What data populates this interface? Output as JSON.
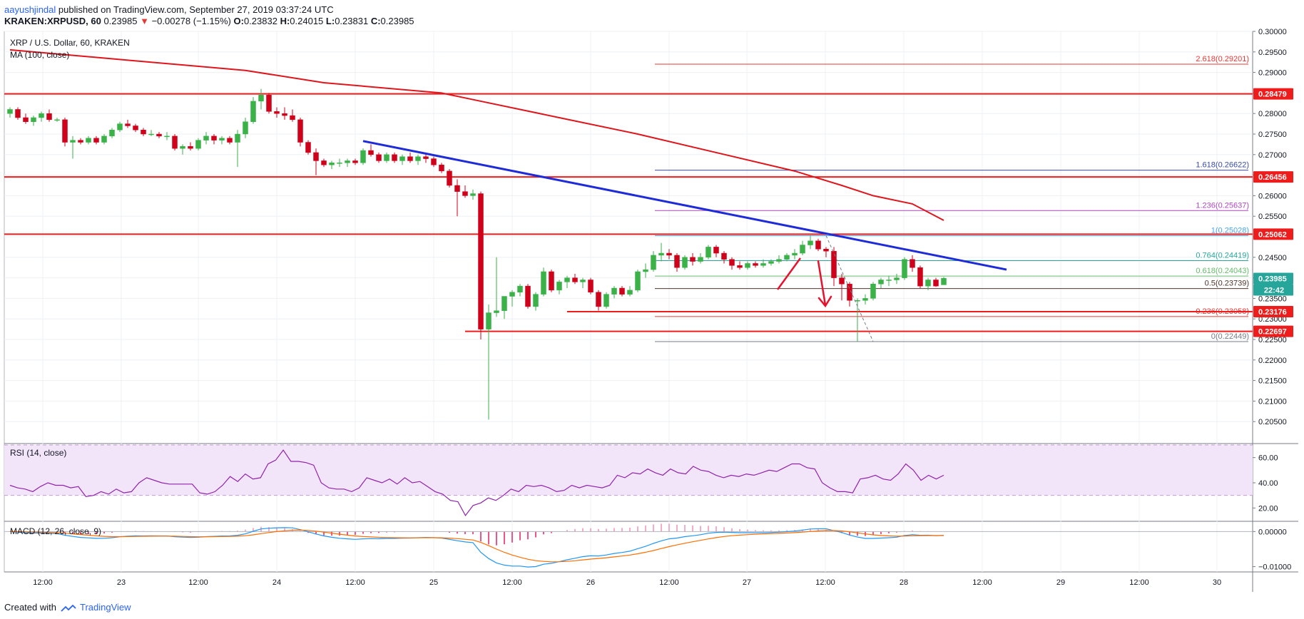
{
  "header": {
    "user": "aayushjindal",
    "published_text": "published on TradingView.com, September 27, 2019 03:37:24 UTC",
    "symbol": "KRAKEN:XRPUSD, 60",
    "last": "0.23985",
    "change_arrow": "▼",
    "change": "−0.00278 (−1.15%)",
    "o_label": "O:",
    "o": "0.23832",
    "h_label": "H:",
    "h": "0.24015",
    "l_label": "L:",
    "l": "0.23831",
    "c_label": "C:",
    "c": "0.23985"
  },
  "footer": {
    "created_with": "Created with",
    "brand": "TradingView"
  },
  "colors": {
    "bull": "#3ab248",
    "bear": "#d0021b",
    "ma": "#e0151b",
    "trend": "#1e2bd8",
    "resistance": "#ef1c1c",
    "rsi": "#8e24aa",
    "macd": "#2196f3",
    "signal": "#ff6d00",
    "hist": "#e91e63"
  },
  "chart_data": [
    {
      "type": "candlestick",
      "title": "XRP / U.S. Dollar, 60, KRAKEN",
      "indicator": "MA (100, close)",
      "ylim": [
        0.2,
        0.3
      ],
      "y_ticks": [
        "0.30000",
        "0.29500",
        "0.29000",
        "0.28500",
        "0.28000",
        "0.27500",
        "0.27000",
        "0.26500",
        "0.26000",
        "0.25500",
        "0.25000",
        "0.24500",
        "0.24000",
        "0.23500",
        "0.23000",
        "0.22500",
        "0.22000",
        "0.21500",
        "0.21000",
        "0.20500"
      ],
      "x_ticks": [
        "12:00",
        "23",
        "12:00",
        "24",
        "12:00",
        "25",
        "12:00",
        "26",
        "12:00",
        "27",
        "12:00",
        "28",
        "12:00",
        "29",
        "12:00",
        "30"
      ],
      "price_labels": [
        {
          "value": 0.28479,
          "label": "0.28479",
          "kind": "resistance"
        },
        {
          "value": 0.26456,
          "label": "0.26456",
          "kind": "resistance"
        },
        {
          "value": 0.25062,
          "label": "0.25062",
          "kind": "resistance"
        },
        {
          "value": 0.23985,
          "label": "0.23985",
          "kind": "last"
        },
        {
          "value": 0.23176,
          "label": "0.23176",
          "kind": "resistance"
        },
        {
          "value": 0.22697,
          "label": "0.22697",
          "kind": "resistance"
        }
      ],
      "countdown": "22:42",
      "fib_levels": [
        {
          "ratio": "2.618",
          "value": "0.29201",
          "label": "2.618(0.29201)"
        },
        {
          "ratio": "1.618",
          "value": "0.26622",
          "label": "1.618(0.26622)"
        },
        {
          "ratio": "1.236",
          "value": "0.25637",
          "label": "1.236(0.25637)"
        },
        {
          "ratio": "1",
          "value": "0.25028",
          "label": "1(0.25028)"
        },
        {
          "ratio": "0.764",
          "value": "0.24419",
          "label": "0.764(0.24419)"
        },
        {
          "ratio": "0.618",
          "value": "0.24043",
          "label": "0.618(0.24043)"
        },
        {
          "ratio": "0.5",
          "value": "0.23739",
          "label": "0.5(0.23739)"
        },
        {
          "ratio": "0.236",
          "value": "0.23058",
          "label": "0.236(0.23058)"
        },
        {
          "ratio": "0",
          "value": "0.22449",
          "label": "0(0.22449)"
        }
      ],
      "candles": [
        [
          0.28,
          0.2815,
          0.279,
          0.281
        ],
        [
          0.281,
          0.2815,
          0.2785,
          0.279
        ],
        [
          0.279,
          0.28,
          0.2775,
          0.278
        ],
        [
          0.278,
          0.2795,
          0.277,
          0.279
        ],
        [
          0.279,
          0.2805,
          0.278,
          0.28
        ],
        [
          0.28,
          0.281,
          0.278,
          0.2785
        ],
        [
          0.2785,
          0.279,
          0.278,
          0.2785
        ],
        [
          0.2785,
          0.279,
          0.272,
          0.273
        ],
        [
          0.273,
          0.2745,
          0.269,
          0.2735
        ],
        [
          0.2735,
          0.274,
          0.2725,
          0.273
        ],
        [
          0.273,
          0.2745,
          0.2725,
          0.274
        ],
        [
          0.274,
          0.2745,
          0.2725,
          0.273
        ],
        [
          0.273,
          0.275,
          0.2725,
          0.2745
        ],
        [
          0.2745,
          0.2765,
          0.274,
          0.276
        ],
        [
          0.276,
          0.278,
          0.2755,
          0.2775
        ],
        [
          0.2775,
          0.2785,
          0.2765,
          0.277
        ],
        [
          0.277,
          0.2775,
          0.2755,
          0.276
        ],
        [
          0.276,
          0.2765,
          0.2745,
          0.275
        ],
        [
          0.275,
          0.276,
          0.2745,
          0.275
        ],
        [
          0.275,
          0.2755,
          0.274,
          0.2745
        ],
        [
          0.2745,
          0.2755,
          0.2735,
          0.2745
        ],
        [
          0.2745,
          0.275,
          0.271,
          0.2715
        ],
        [
          0.2715,
          0.2725,
          0.27,
          0.272
        ],
        [
          0.272,
          0.273,
          0.271,
          0.2715
        ],
        [
          0.2715,
          0.274,
          0.271,
          0.2735
        ],
        [
          0.2735,
          0.2755,
          0.2725,
          0.2745
        ],
        [
          0.2745,
          0.275,
          0.2725,
          0.2735
        ],
        [
          0.2735,
          0.2745,
          0.2725,
          0.274
        ],
        [
          0.274,
          0.2745,
          0.2725,
          0.273
        ],
        [
          0.273,
          0.276,
          0.267,
          0.275
        ],
        [
          0.275,
          0.279,
          0.274,
          0.278
        ],
        [
          0.278,
          0.284,
          0.2775,
          0.283
        ],
        [
          0.283,
          0.286,
          0.281,
          0.2845
        ],
        [
          0.2845,
          0.285,
          0.28,
          0.2805
        ],
        [
          0.2805,
          0.2815,
          0.279,
          0.28
        ],
        [
          0.28,
          0.2815,
          0.2785,
          0.2795
        ],
        [
          0.2795,
          0.281,
          0.278,
          0.2785
        ],
        [
          0.2785,
          0.279,
          0.272,
          0.273
        ],
        [
          0.273,
          0.2735,
          0.27,
          0.2705
        ],
        [
          0.2705,
          0.2715,
          0.265,
          0.2685
        ],
        [
          0.2685,
          0.269,
          0.267,
          0.2675
        ],
        [
          0.2675,
          0.2685,
          0.2665,
          0.268
        ],
        [
          0.268,
          0.269,
          0.267,
          0.268
        ],
        [
          0.268,
          0.269,
          0.267,
          0.2685
        ],
        [
          0.2685,
          0.269,
          0.2675,
          0.268
        ],
        [
          0.268,
          0.2715,
          0.2675,
          0.271
        ],
        [
          0.271,
          0.2725,
          0.2695,
          0.27
        ],
        [
          0.27,
          0.2705,
          0.268,
          0.2685
        ],
        [
          0.2685,
          0.2705,
          0.268,
          0.27
        ],
        [
          0.27,
          0.2705,
          0.268,
          0.2685
        ],
        [
          0.2685,
          0.27,
          0.2675,
          0.2695
        ],
        [
          0.2695,
          0.2705,
          0.268,
          0.2685
        ],
        [
          0.2685,
          0.27,
          0.2675,
          0.2695
        ],
        [
          0.2695,
          0.2705,
          0.268,
          0.269
        ],
        [
          0.269,
          0.2695,
          0.267,
          0.2675
        ],
        [
          0.2675,
          0.268,
          0.2655,
          0.266
        ],
        [
          0.266,
          0.2665,
          0.262,
          0.2625
        ],
        [
          0.2625,
          0.264,
          0.255,
          0.261
        ],
        [
          0.261,
          0.2625,
          0.2595,
          0.26
        ],
        [
          0.26,
          0.2615,
          0.259,
          0.2605
        ],
        [
          0.2605,
          0.261,
          0.225,
          0.2275
        ],
        [
          0.2275,
          0.2335,
          0.2055,
          0.2315
        ],
        [
          0.2315,
          0.245,
          0.2305,
          0.232
        ],
        [
          0.232,
          0.235,
          0.23,
          0.2355
        ],
        [
          0.2355,
          0.237,
          0.233,
          0.2365
        ],
        [
          0.2365,
          0.2385,
          0.2355,
          0.238
        ],
        [
          0.238,
          0.2385,
          0.2325,
          0.233
        ],
        [
          0.233,
          0.2365,
          0.232,
          0.236
        ],
        [
          0.236,
          0.2425,
          0.2355,
          0.2415
        ],
        [
          0.2415,
          0.242,
          0.2365,
          0.237
        ],
        [
          0.237,
          0.2395,
          0.236,
          0.239
        ],
        [
          0.239,
          0.2405,
          0.2375,
          0.24
        ],
        [
          0.24,
          0.241,
          0.2385,
          0.239
        ],
        [
          0.239,
          0.24,
          0.2375,
          0.2395
        ],
        [
          0.2395,
          0.24,
          0.236,
          0.2365
        ],
        [
          0.2365,
          0.237,
          0.232,
          0.233
        ],
        [
          0.233,
          0.2365,
          0.2325,
          0.236
        ],
        [
          0.236,
          0.238,
          0.235,
          0.2375
        ],
        [
          0.2375,
          0.238,
          0.2355,
          0.236
        ],
        [
          0.236,
          0.238,
          0.2355,
          0.237
        ],
        [
          0.237,
          0.242,
          0.2365,
          0.2415
        ],
        [
          0.2415,
          0.2435,
          0.24,
          0.242
        ],
        [
          0.242,
          0.2465,
          0.2415,
          0.2455
        ],
        [
          0.2455,
          0.2485,
          0.244,
          0.246
        ],
        [
          0.246,
          0.247,
          0.2445,
          0.2455
        ],
        [
          0.2455,
          0.246,
          0.2415,
          0.2425
        ],
        [
          0.2425,
          0.2455,
          0.242,
          0.245
        ],
        [
          0.245,
          0.246,
          0.243,
          0.244
        ],
        [
          0.244,
          0.246,
          0.2435,
          0.245
        ],
        [
          0.245,
          0.248,
          0.2445,
          0.2475
        ],
        [
          0.2475,
          0.248,
          0.245,
          0.246
        ],
        [
          0.246,
          0.2465,
          0.2435,
          0.2445
        ],
        [
          0.2445,
          0.245,
          0.242,
          0.243
        ],
        [
          0.243,
          0.244,
          0.242,
          0.2425
        ],
        [
          0.2425,
          0.244,
          0.242,
          0.2435
        ],
        [
          0.2435,
          0.244,
          0.2425,
          0.243
        ],
        [
          0.243,
          0.2445,
          0.2425,
          0.2435
        ],
        [
          0.2435,
          0.2445,
          0.243,
          0.244
        ],
        [
          0.244,
          0.2455,
          0.2435,
          0.2445
        ],
        [
          0.2445,
          0.246,
          0.244,
          0.2455
        ],
        [
          0.2455,
          0.247,
          0.2445,
          0.246
        ],
        [
          0.246,
          0.249,
          0.2455,
          0.248
        ],
        [
          0.248,
          0.2503,
          0.247,
          0.249
        ],
        [
          0.249,
          0.2495,
          0.2465,
          0.247
        ],
        [
          0.247,
          0.2475,
          0.245,
          0.2465
        ],
        [
          0.2465,
          0.2475,
          0.238,
          0.24
        ],
        [
          0.24,
          0.241,
          0.2345,
          0.2385
        ],
        [
          0.2385,
          0.239,
          0.233,
          0.2345
        ],
        [
          0.2345,
          0.235,
          0.2245,
          0.2345
        ],
        [
          0.2345,
          0.236,
          0.2335,
          0.235
        ],
        [
          0.235,
          0.239,
          0.2345,
          0.2385
        ],
        [
          0.2385,
          0.24,
          0.2375,
          0.2395
        ],
        [
          0.2395,
          0.2405,
          0.238,
          0.2395
        ],
        [
          0.2395,
          0.241,
          0.2385,
          0.24
        ],
        [
          0.24,
          0.245,
          0.2395,
          0.2445
        ],
        [
          0.2445,
          0.2455,
          0.2415,
          0.2425
        ],
        [
          0.2425,
          0.243,
          0.2375,
          0.238
        ],
        [
          0.238,
          0.24,
          0.237,
          0.2395
        ],
        [
          0.2395,
          0.24,
          0.2378,
          0.238
        ],
        [
          0.2383,
          0.2402,
          0.2383,
          0.2399
        ]
      ],
      "ma100": [
        [
          0,
          0.2955
        ],
        [
          15,
          0.293
        ],
        [
          30,
          0.2905
        ],
        [
          40,
          0.2875
        ],
        [
          55,
          0.285
        ],
        [
          60,
          0.283
        ],
        [
          70,
          0.279
        ],
        [
          80,
          0.275
        ],
        [
          90,
          0.2705
        ],
        [
          100,
          0.266
        ],
        [
          106,
          0.2625
        ],
        [
          110,
          0.26
        ],
        [
          115,
          0.258
        ],
        [
          119,
          0.254
        ]
      ],
      "trendline": [
        [
          45,
          0.2733
        ],
        [
          127,
          0.242
        ]
      ],
      "support_levels": [
        {
          "value": 0.28479,
          "from": 0
        },
        {
          "value": 0.26456,
          "from": 0
        },
        {
          "value": 0.25062,
          "from": 0
        },
        {
          "value": 0.23176,
          "from": 71
        },
        {
          "value": 0.22697,
          "from": 58
        }
      ]
    },
    {
      "type": "line",
      "title": "RSI (14, close)",
      "ylim": [
        10,
        70
      ],
      "y_ticks": [
        "60.00",
        "40.00",
        "20.00"
      ],
      "band": [
        30,
        70
      ],
      "values": [
        38,
        36,
        35,
        33,
        37,
        40,
        38,
        38,
        36,
        37,
        29,
        30,
        33,
        31,
        35,
        32,
        33,
        40,
        44,
        42,
        40,
        39,
        39,
        39,
        39,
        32,
        31,
        33,
        38,
        45,
        41,
        47,
        43,
        44,
        55,
        58,
        66,
        57,
        57,
        56,
        54,
        40,
        36,
        35,
        35,
        33,
        36,
        44,
        42,
        40,
        43,
        39,
        44,
        40,
        41,
        37,
        33,
        31,
        26,
        25,
        14,
        22,
        24,
        28,
        26,
        30,
        35,
        33,
        38,
        37,
        38,
        36,
        33,
        34,
        38,
        36,
        38,
        37,
        36,
        38,
        46,
        44,
        48,
        47,
        51,
        48,
        46,
        51,
        48,
        47,
        53,
        50,
        49,
        46,
        44,
        46,
        45,
        47,
        46,
        48,
        50,
        49,
        52,
        55,
        55,
        52,
        51,
        40,
        36,
        33,
        33,
        32,
        43,
        44,
        46,
        43,
        42,
        47,
        55,
        50,
        42,
        46,
        43,
        46
      ]
    },
    {
      "type": "line",
      "title": "MACD (12, 26, close, 9)",
      "ylim": [
        -0.0115,
        0.0025
      ],
      "y_ticks": [
        "0.00000",
        "−0.01000"
      ],
      "series": [
        "MACD",
        "Signal",
        "Histogram"
      ]
    }
  ]
}
